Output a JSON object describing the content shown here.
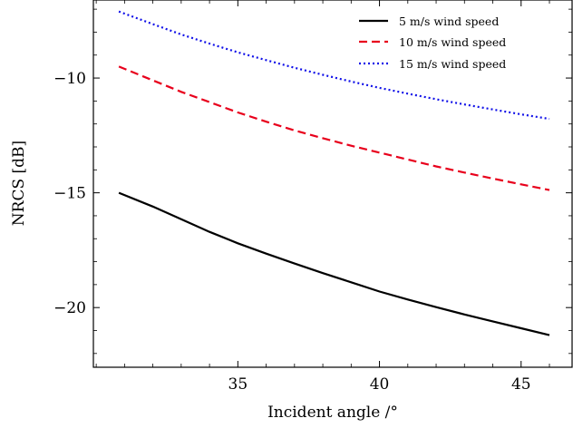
{
  "chart_data": {
    "type": "line",
    "xlabel": "Incident angle /°",
    "ylabel": "NRCS [dB]",
    "xlim": [
      29.9,
      46.8
    ],
    "ylim": [
      -22.6,
      -6.6
    ],
    "x_ticks": [
      35,
      40,
      45
    ],
    "y_ticks": [
      -10,
      -15,
      -20
    ],
    "x_tick_labels": [
      "35",
      "40",
      "45"
    ],
    "y_tick_labels": [
      "−10",
      "−15",
      "−20"
    ],
    "grid": false,
    "legend_position": "top-right",
    "series": [
      {
        "name": "5 m/s wind speed",
        "color": "#000000",
        "style": "solid",
        "x": [
          30.8,
          32,
          33,
          34,
          35,
          36,
          37,
          38,
          39,
          40,
          41,
          42,
          43,
          44,
          45,
          46
        ],
        "y": [
          -15.0,
          -15.6,
          -16.15,
          -16.7,
          -17.2,
          -17.65,
          -18.08,
          -18.5,
          -18.9,
          -19.3,
          -19.65,
          -19.98,
          -20.3,
          -20.6,
          -20.9,
          -21.2
        ]
      },
      {
        "name": "10 m/s wind speed",
        "color": "#e8001c",
        "style": "dashed",
        "x": [
          30.8,
          32,
          33,
          34,
          35,
          36,
          37,
          38,
          39,
          40,
          41,
          42,
          43,
          44,
          45,
          46
        ],
        "y": [
          -9.5,
          -10.1,
          -10.6,
          -11.05,
          -11.5,
          -11.9,
          -12.28,
          -12.62,
          -12.95,
          -13.25,
          -13.55,
          -13.85,
          -14.12,
          -14.38,
          -14.63,
          -14.88
        ]
      },
      {
        "name": "15 m/s wind speed",
        "color": "#1010e8",
        "style": "dotted",
        "x": [
          30.8,
          32,
          33,
          34,
          35,
          36,
          37,
          38,
          39,
          40,
          41,
          42,
          43,
          44,
          45,
          46
        ],
        "y": [
          -7.1,
          -7.65,
          -8.1,
          -8.5,
          -8.88,
          -9.22,
          -9.55,
          -9.86,
          -10.15,
          -10.43,
          -10.68,
          -10.92,
          -11.15,
          -11.37,
          -11.58,
          -11.78
        ]
      }
    ]
  }
}
